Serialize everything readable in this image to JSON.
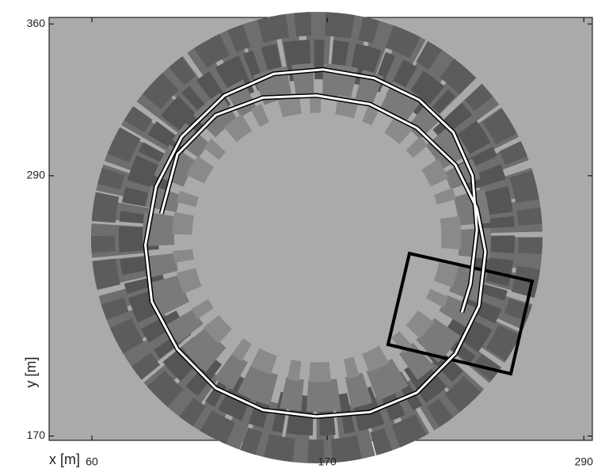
{
  "chart_data": {
    "type": "trajectory",
    "x_label": "x [m]",
    "y_label": "y [m]",
    "xlim": [
      40,
      294
    ],
    "ylim": [
      168,
      363
    ],
    "xticks": [
      60,
      170,
      290
    ],
    "yticks": [
      170,
      290,
      360
    ],
    "series": [
      {
        "color": "#ffffff",
        "x": [
          92.5,
          100,
          118,
          140,
          165,
          190,
          212,
          230,
          240,
          244,
          241,
          230,
          212,
          190,
          165,
          140,
          118,
          100,
          88,
          85,
          90,
          102,
          122,
          145,
          168,
          192,
          213,
          229,
          238,
          240,
          237,
          233
        ],
        "values": [
          272.5,
          300,
          318,
          326,
          327,
          323,
          312,
          295,
          275,
          255,
          230,
          208,
          190,
          181,
          179,
          182,
          192,
          210,
          232,
          258,
          285,
          308,
          327,
          337,
          339,
          335,
          325,
          310,
          290,
          265,
          240,
          227
        ]
      }
    ]
  }
}
